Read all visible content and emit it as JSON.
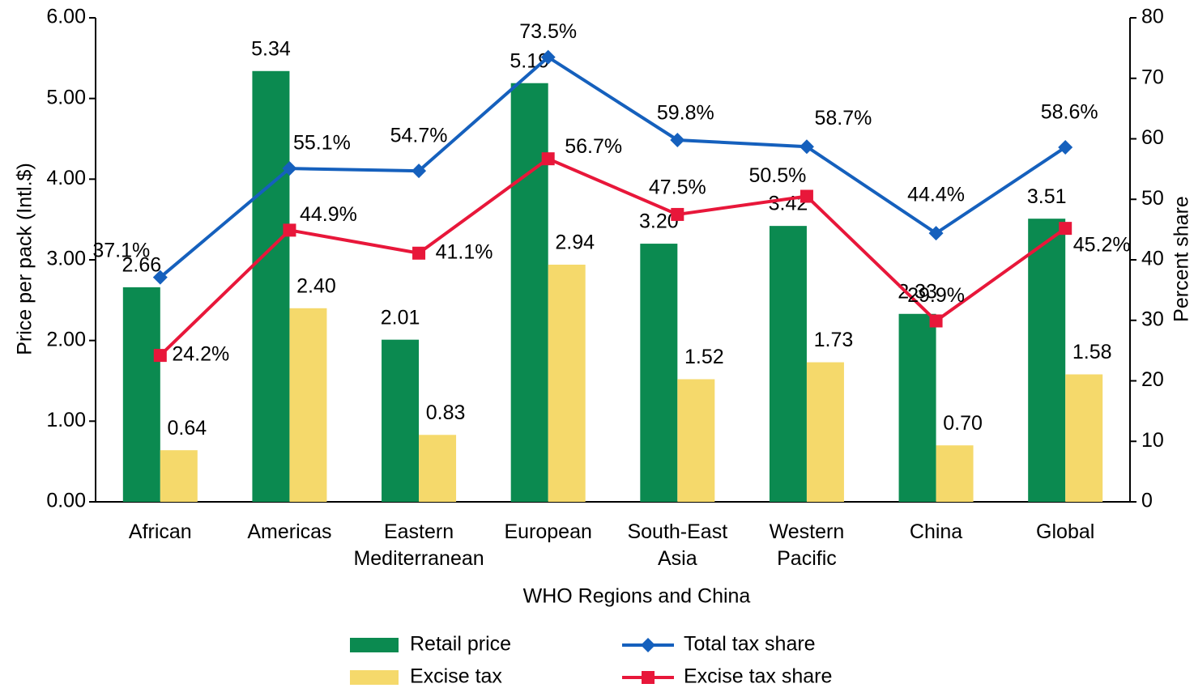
{
  "chart_data": {
    "type": "bar_line",
    "categories": [
      "African",
      "Americas",
      "Eastern Mediterranean",
      "European",
      "South-East Asia",
      "Western Pacific",
      "China",
      "Global"
    ],
    "xlabel": "WHO Regions and China",
    "ylabel": "Price per pack (Intl.$)",
    "y2label": "Percent share",
    "ylim": [
      0,
      6
    ],
    "yticks": [
      {
        "value": 0,
        "label": "0.00"
      },
      {
        "value": 1,
        "label": "1.00"
      },
      {
        "value": 2,
        "label": "2.00"
      },
      {
        "value": 3,
        "label": "3.00"
      },
      {
        "value": 4,
        "label": "4.00"
      },
      {
        "value": 5,
        "label": "5.00"
      },
      {
        "value": 6,
        "label": "6.00"
      }
    ],
    "y2lim": [
      0,
      80
    ],
    "y2ticks": [
      0,
      10,
      20,
      30,
      40,
      50,
      60,
      70,
      80
    ],
    "series": [
      {
        "name": "Retail price",
        "kind": "bar",
        "color": "#0b8a50",
        "values": [
          2.66,
          5.34,
          2.01,
          5.19,
          3.2,
          3.42,
          2.33,
          3.51
        ],
        "value_labels": [
          "2.66",
          "5.34",
          "2.01",
          "5.19",
          "3.20",
          "3.42",
          "2.33",
          "3.51"
        ]
      },
      {
        "name": "Excise tax",
        "kind": "bar",
        "color": "#f5d96b",
        "values": [
          0.64,
          2.4,
          0.83,
          2.94,
          1.52,
          1.73,
          0.7,
          1.58
        ],
        "value_labels": [
          "0.64",
          "2.40",
          "0.83",
          "2.94",
          "1.52",
          "1.73",
          "0.70",
          "1.58"
        ]
      },
      {
        "name": "Total tax share",
        "kind": "line",
        "axis": "y2",
        "color": "#1560bd",
        "marker": "diamond",
        "values": [
          37.1,
          55.1,
          54.7,
          73.5,
          59.8,
          58.7,
          44.4,
          58.6
        ],
        "value_labels": [
          "37.1%",
          "55.1%",
          "54.7%",
          "73.5%",
          "59.8%",
          "58.7%",
          "44.4%",
          "58.6%"
        ]
      },
      {
        "name": "Excise tax share",
        "kind": "line",
        "axis": "y2",
        "color": "#e8173a",
        "marker": "square",
        "values": [
          24.2,
          44.9,
          41.1,
          56.7,
          47.5,
          50.5,
          29.9,
          45.2
        ],
        "value_labels": [
          "24.2%",
          "44.9%",
          "41.1%",
          "56.7%",
          "47.5%",
          "50.5%",
          "29.9%",
          "45.2%"
        ]
      }
    ]
  }
}
